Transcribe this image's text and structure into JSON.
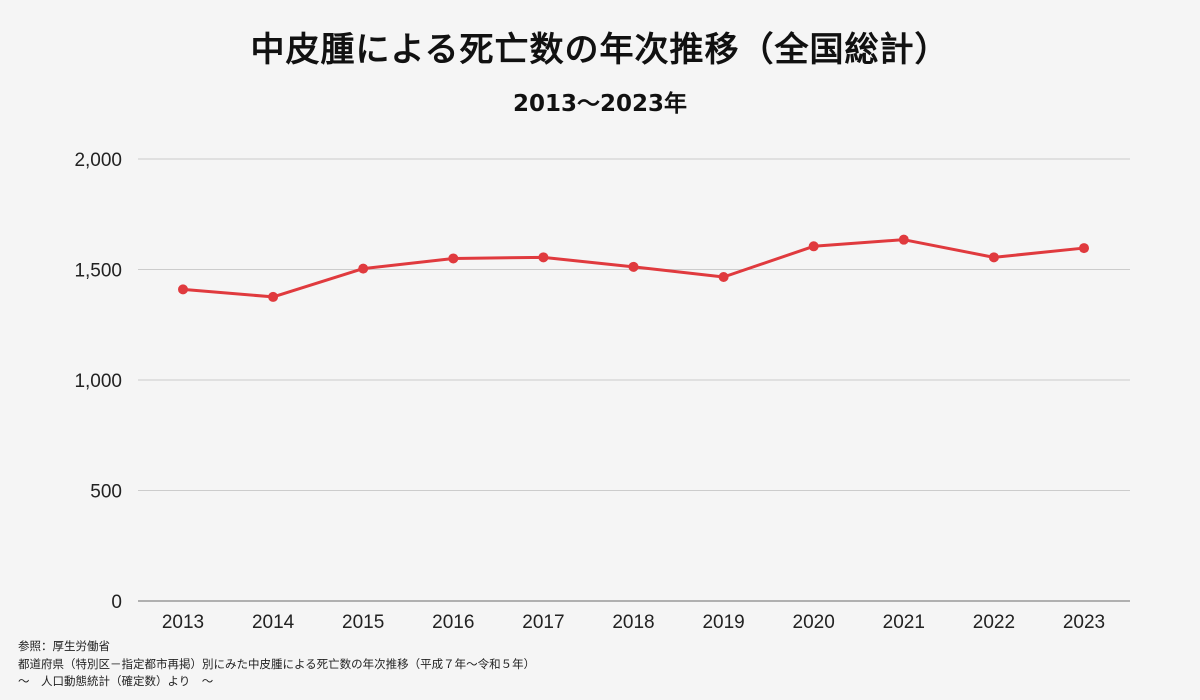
{
  "chart_data": {
    "type": "line",
    "title": "中皮腫による死亡数の年次推移（全国総計）",
    "subtitle": "2013〜2023年",
    "xlabel": "",
    "ylabel": "",
    "categories": [
      "2013",
      "2014",
      "2015",
      "2016",
      "2017",
      "2018",
      "2019",
      "2020",
      "2021",
      "2022",
      "2023"
    ],
    "series": [
      {
        "values": [
          1410,
          1376,
          1504,
          1550,
          1555,
          1512,
          1466,
          1605,
          1635,
          1555,
          1597
        ]
      }
    ],
    "ylim": [
      0,
      2000
    ],
    "yticks": [
      "0",
      "500",
      "1,000",
      "1,500",
      "2,000"
    ],
    "ytick_values": [
      0,
      500,
      1000,
      1500,
      2000
    ],
    "grid": true,
    "legend": "none",
    "colors": {
      "line": "#e03a3e",
      "grid": "#cccccc",
      "background": "#f5f5f5"
    }
  },
  "source": {
    "line1": "参照：厚生労働省",
    "line2": "都道府県（特別区－指定都市再掲）別にみた中皮腫による死亡数の年次推移（平成７年〜令和５年）",
    "line3": "〜　人口動態統計（確定数）より　〜"
  }
}
